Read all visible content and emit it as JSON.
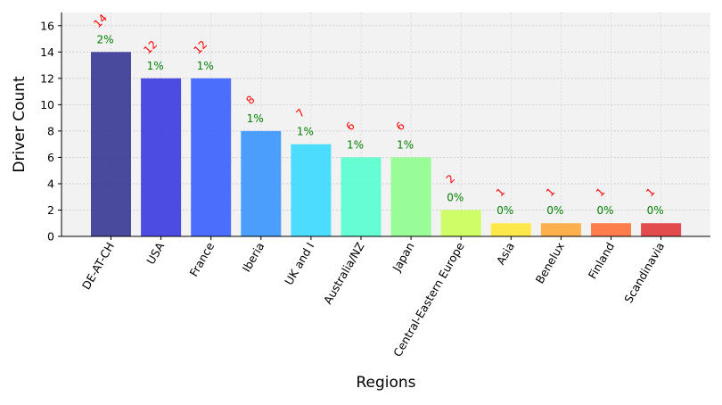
{
  "chart_data": {
    "type": "bar",
    "xlabel": "Regions",
    "ylabel": "Driver Count",
    "ylim": [
      0,
      17
    ],
    "yticks": [
      0,
      2,
      4,
      6,
      8,
      10,
      12,
      14,
      16
    ],
    "grid": true,
    "categories": [
      "DE-AT-CH",
      "USA",
      "France",
      "Iberia",
      "UK and I",
      "Australia/NZ",
      "Japan",
      "Central-Eastern Europe",
      "Asia",
      "Benelux",
      "Finland",
      "Scandinavia"
    ],
    "values": [
      14,
      12,
      12,
      8,
      7,
      6,
      6,
      2,
      1,
      1,
      1,
      1
    ],
    "percent_labels": [
      "2%",
      "1%",
      "1%",
      "1%",
      "1%",
      "1%",
      "1%",
      "0%",
      "0%",
      "0%",
      "0%",
      "0%"
    ],
    "bar_colors": [
      "#2b2b8f",
      "#2f2fe0",
      "#2f57ff",
      "#2f8fff",
      "#2fd8ff",
      "#4dffcc",
      "#88ff88",
      "#c8ff4d",
      "#ffe62f",
      "#ffa42f",
      "#ff6a2f",
      "#e02f2f"
    ],
    "value_label_color": "#ff0000",
    "percent_label_color": "#008000",
    "plot_background": "#f2f2f2"
  }
}
